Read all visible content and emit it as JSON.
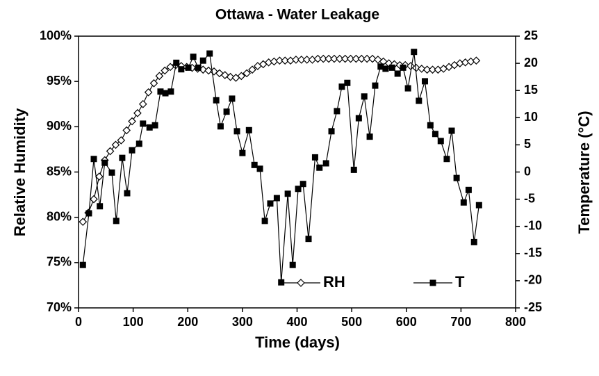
{
  "chart_data": {
    "type": "line",
    "title": "Ottawa - Water Leakage",
    "x_label": "Time (days)",
    "y_label": "Relative Humidity",
    "y2_label": "Temperature (°C)",
    "xlim": [
      0,
      800
    ],
    "xticks": [
      0,
      100,
      200,
      300,
      400,
      500,
      600,
      700,
      800
    ],
    "ylim": [
      70,
      100
    ],
    "yticks": [
      {
        "value": 70,
        "label": "70%"
      },
      {
        "value": 75,
        "label": "75%"
      },
      {
        "value": 80,
        "label": "80%"
      },
      {
        "value": 85,
        "label": "85%"
      },
      {
        "value": 90,
        "label": "90%"
      },
      {
        "value": 95,
        "label": "95%"
      },
      {
        "value": 100,
        "label": "100%"
      }
    ],
    "y2lim": [
      -25,
      25
    ],
    "y2ticks": [
      -25,
      -20,
      -15,
      -10,
      -5,
      0,
      5,
      10,
      15,
      20,
      25
    ],
    "legend": "lower center",
    "series": [
      {
        "name": "RH",
        "color": "#000000",
        "marker": "diamond",
        "axis": "y",
        "x": [
          8,
          18,
          28,
          38,
          48,
          58,
          68,
          78,
          88,
          98,
          108,
          118,
          128,
          138,
          148,
          158,
          168,
          178,
          188,
          198,
          208,
          218,
          228,
          238,
          248,
          258,
          268,
          278,
          288,
          298,
          308,
          318,
          328,
          338,
          348,
          358,
          368,
          378,
          388,
          398,
          408,
          418,
          428,
          438,
          448,
          458,
          468,
          478,
          488,
          498,
          508,
          518,
          528,
          538,
          548,
          558,
          568,
          578,
          588,
          598,
          608,
          618,
          628,
          638,
          648,
          658,
          668,
          678,
          688,
          698,
          708,
          718,
          728
        ],
        "values": [
          79.5,
          80.5,
          82,
          84.5,
          86.3,
          87.3,
          88,
          88.5,
          89.6,
          90.6,
          91.5,
          92.5,
          93.8,
          94.8,
          95.6,
          96.2,
          96.6,
          96.8,
          96.7,
          96.6,
          96.5,
          96.4,
          96.3,
          96.2,
          96.1,
          95.9,
          95.7,
          95.5,
          95.4,
          95.6,
          95.9,
          96.3,
          96.7,
          96.9,
          97.1,
          97.2,
          97.3,
          97.3,
          97.3,
          97.4,
          97.4,
          97.4,
          97.4,
          97.5,
          97.5,
          97.5,
          97.5,
          97.5,
          97.5,
          97.5,
          97.5,
          97.5,
          97.5,
          97.5,
          97.4,
          97.2,
          97,
          96.9,
          96.8,
          96.8,
          96.7,
          96.5,
          96.4,
          96.3,
          96.3,
          96.3,
          96.4,
          96.6,
          96.8,
          97,
          97.1,
          97.2,
          97.3
        ]
      },
      {
        "name": "T",
        "color": "#000000",
        "marker": "square",
        "axis": "y2",
        "x": [
          8,
          19,
          28,
          39,
          48,
          61,
          69,
          80,
          89,
          98,
          111,
          118,
          130,
          140,
          150,
          159,
          169,
          179,
          188,
          201,
          210,
          219,
          228,
          240,
          252,
          260,
          271,
          281,
          290,
          300,
          312,
          322,
          332,
          341,
          351,
          363,
          371,
          383,
          392,
          402,
          411,
          421,
          433,
          441,
          453,
          463,
          473,
          482,
          492,
          504,
          513,
          523,
          533,
          543,
          553,
          562,
          574,
          584,
          594,
          603,
          614,
          623,
          634,
          644,
          653,
          663,
          674,
          683,
          692,
          705,
          714,
          724,
          733
        ],
        "values": [
          -17.1,
          -7.6,
          2.4,
          -6.3,
          1.7,
          -0.1,
          -9,
          2.6,
          -3.9,
          4,
          5.2,
          8.9,
          8.2,
          8.6,
          14.8,
          14.5,
          14.8,
          20.1,
          18.9,
          19.2,
          21.2,
          19.2,
          20.5,
          21.8,
          13.2,
          8.4,
          11.1,
          13.5,
          7.5,
          3.5,
          7.7,
          1.3,
          0.6,
          -9,
          -5.8,
          -4.8,
          -20.3,
          -4,
          -17.1,
          -3.1,
          -2.2,
          -12.3,
          2.7,
          0.8,
          1.6,
          7.5,
          11.2,
          15.7,
          16.4,
          0.4,
          9.9,
          13.9,
          6.5,
          15.9,
          19.4,
          19,
          19.2,
          18.1,
          19.2,
          15.4,
          22.1,
          13.1,
          16.7,
          8.6,
          7,
          5.7,
          2.4,
          7.6,
          -1.1,
          -5.6,
          -3.3,
          -12.9,
          -6.1
        ]
      }
    ]
  }
}
